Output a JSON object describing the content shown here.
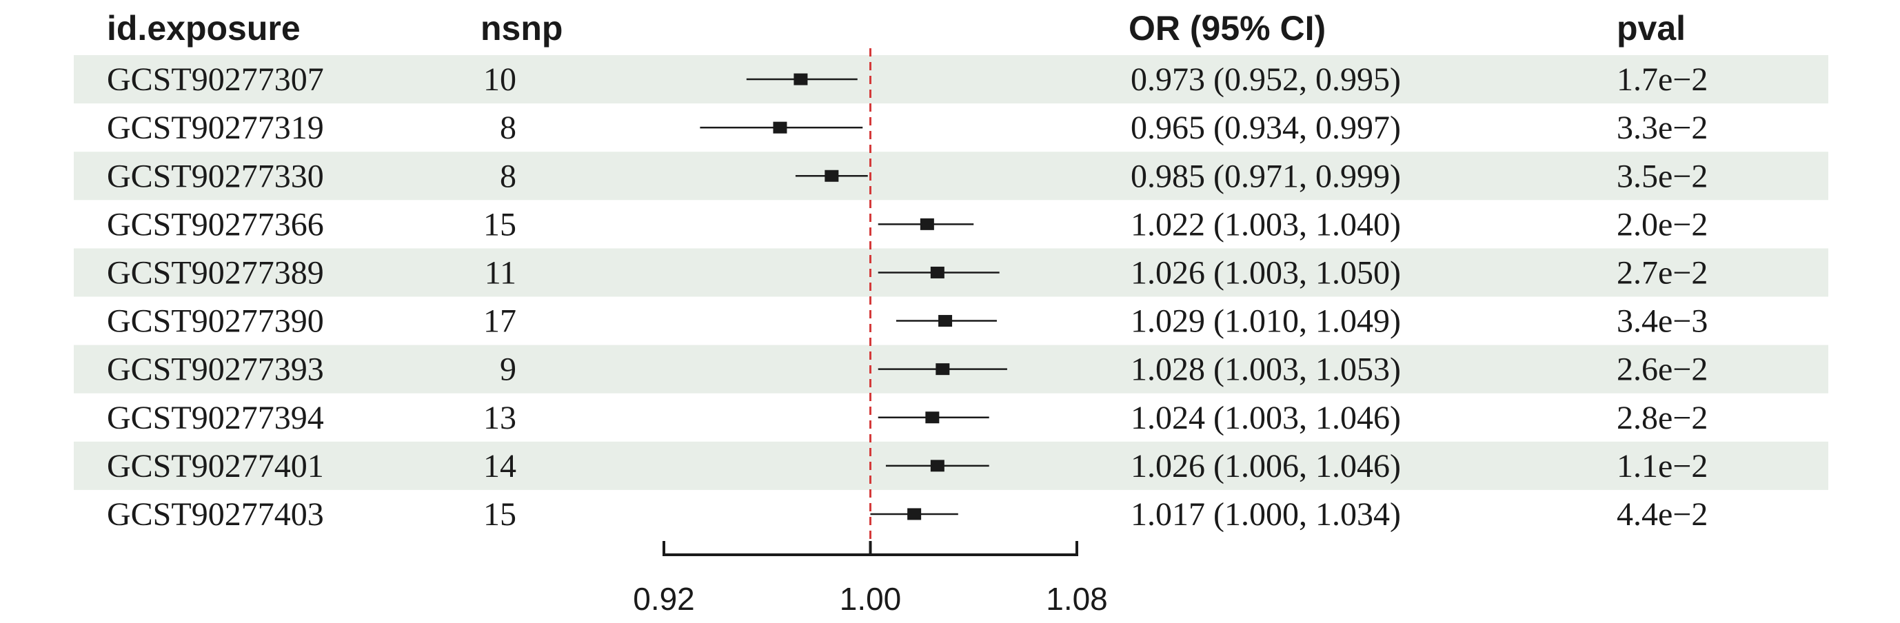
{
  "chart_data": {
    "type": "forest",
    "columns": {
      "exposure": "id.exposure",
      "nsnp": "nsnp",
      "or_ci": "OR (95% CI)",
      "pval": "pval"
    },
    "rows": [
      {
        "exposure": "GCST90277307",
        "nsnp": "10",
        "or": 0.973,
        "lo": 0.952,
        "hi": 0.995,
        "or_ci_text": "0.973 (0.952, 0.995)",
        "pval": "1.7e−2"
      },
      {
        "exposure": "GCST90277319",
        "nsnp": "8",
        "or": 0.965,
        "lo": 0.934,
        "hi": 0.997,
        "or_ci_text": "0.965 (0.934, 0.997)",
        "pval": "3.3e−2"
      },
      {
        "exposure": "GCST90277330",
        "nsnp": "8",
        "or": 0.985,
        "lo": 0.971,
        "hi": 0.999,
        "or_ci_text": "0.985 (0.971, 0.999)",
        "pval": "3.5e−2"
      },
      {
        "exposure": "GCST90277366",
        "nsnp": "15",
        "or": 1.022,
        "lo": 1.003,
        "hi": 1.04,
        "or_ci_text": "1.022 (1.003, 1.040)",
        "pval": "2.0e−2"
      },
      {
        "exposure": "GCST90277389",
        "nsnp": "11",
        "or": 1.026,
        "lo": 1.003,
        "hi": 1.05,
        "or_ci_text": "1.026 (1.003, 1.050)",
        "pval": "2.7e−2"
      },
      {
        "exposure": "GCST90277390",
        "nsnp": "17",
        "or": 1.029,
        "lo": 1.01,
        "hi": 1.049,
        "or_ci_text": "1.029 (1.010, 1.049)",
        "pval": "3.4e−3"
      },
      {
        "exposure": "GCST90277393",
        "nsnp": "9",
        "or": 1.028,
        "lo": 1.003,
        "hi": 1.053,
        "or_ci_text": "1.028 (1.003, 1.053)",
        "pval": "2.6e−2"
      },
      {
        "exposure": "GCST90277394",
        "nsnp": "13",
        "or": 1.024,
        "lo": 1.003,
        "hi": 1.046,
        "or_ci_text": "1.024 (1.003, 1.046)",
        "pval": "2.8e−2"
      },
      {
        "exposure": "GCST90277401",
        "nsnp": "14",
        "or": 1.026,
        "lo": 1.006,
        "hi": 1.046,
        "or_ci_text": "1.026 (1.006, 1.046)",
        "pval": "1.1e−2"
      },
      {
        "exposure": "GCST90277403",
        "nsnp": "15",
        "or": 1.017,
        "lo": 1.0,
        "hi": 1.034,
        "or_ci_text": "1.017 (1.000, 1.034)",
        "pval": "4.4e−2"
      }
    ],
    "x_axis": {
      "range": [
        0.92,
        1.08
      ],
      "ticks": [
        0.92,
        1.0,
        1.08
      ],
      "tick_labels": [
        "0.92",
        "1.00",
        "1.08"
      ]
    },
    "reference_line": 1.0,
    "colors": {
      "stripe": "#e8eee8",
      "reference_line": "#d43a3a",
      "marks": "#1a1a1a"
    },
    "grid": false,
    "legend": "none"
  }
}
